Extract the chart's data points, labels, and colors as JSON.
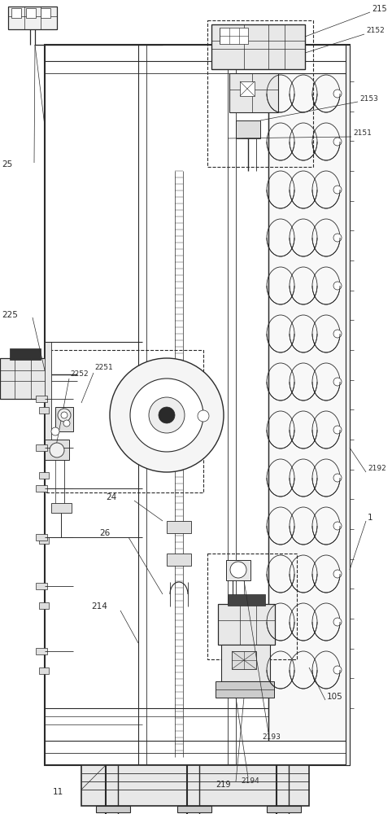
{
  "bg_color": "#ffffff",
  "lc": "#2a2a2a",
  "figsize": [
    4.82,
    10.0
  ],
  "dpi": 100
}
